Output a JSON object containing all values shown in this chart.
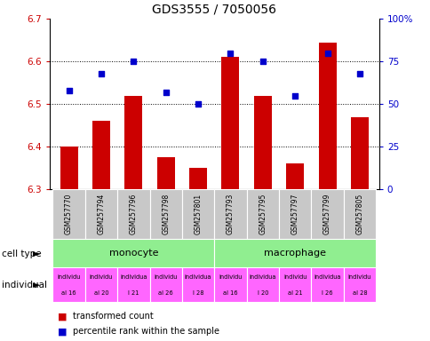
{
  "title": "GDS3555 / 7050056",
  "samples": [
    "GSM257770",
    "GSM257794",
    "GSM257796",
    "GSM257798",
    "GSM257801",
    "GSM257793",
    "GSM257795",
    "GSM257797",
    "GSM257799",
    "GSM257805"
  ],
  "bar_values": [
    6.4,
    6.46,
    6.52,
    6.375,
    6.35,
    6.61,
    6.52,
    6.36,
    6.645,
    6.47
  ],
  "dot_percentiles": [
    58,
    68,
    75,
    57,
    50,
    80,
    75,
    55,
    80,
    68
  ],
  "ylim_left": [
    6.3,
    6.7
  ],
  "ylim_right": [
    0,
    100
  ],
  "yticks_left": [
    6.3,
    6.4,
    6.5,
    6.6,
    6.7
  ],
  "yticks_right": [
    0,
    25,
    50,
    75,
    100
  ],
  "ytick_labels_right": [
    "0",
    "25",
    "50",
    "75",
    "100%"
  ],
  "bar_color": "#cc0000",
  "dot_color": "#0000cc",
  "bar_bottom": 6.3,
  "cell_type_color": "#90ee90",
  "individual_color": "#ff66ff",
  "sample_bg_color": "#c8c8c8",
  "xlabel_celltype": "cell type",
  "xlabel_individual": "individual",
  "legend_bar": "transformed count",
  "legend_dot": "percentile rank within the sample",
  "tick_label_color_left": "#cc0000",
  "tick_label_color_right": "#0000cc",
  "ind_labels_top": [
    "individu",
    "individu",
    "individua",
    "individu",
    "individua",
    "individu",
    "individua",
    "individu",
    "individua",
    "individu"
  ],
  "ind_labels_bot": [
    "al 16",
    "al 20",
    "l 21",
    "al 26",
    "l 28",
    "al 16",
    "l 20",
    "al 21",
    "l 26",
    "al 28"
  ]
}
